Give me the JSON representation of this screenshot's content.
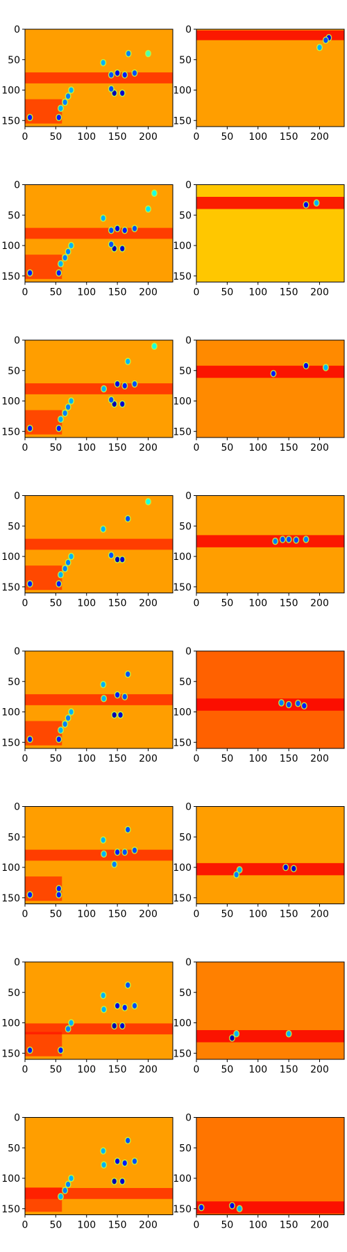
{
  "chart_data": {
    "type": "heatmap",
    "title": "",
    "colormap": "jet",
    "grid": false,
    "legend": "none",
    "layout": {
      "rows": 8,
      "cols": 2
    },
    "image_size": {
      "width": 240,
      "height": 160
    },
    "xlim": [
      0,
      240
    ],
    "ylim": [
      160,
      0
    ],
    "xticks": [
      0,
      50,
      100,
      150,
      200
    ],
    "yticks": [
      0,
      50,
      100,
      150
    ],
    "blob_groups": {
      "A": [
        [
          127,
          55
        ],
        [
          168,
          40
        ],
        [
          180,
          45
        ],
        [
          199,
          14
        ],
        [
          200,
          40
        ],
        [
          210,
          45
        ],
        [
          128,
          80
        ],
        [
          138,
          78
        ],
        [
          150,
          72
        ],
        [
          162,
          75
        ],
        [
          178,
          72
        ],
        [
          150,
          105
        ],
        [
          140,
          100
        ],
        [
          160,
          100
        ],
        [
          125,
          85
        ],
        [
          165,
          90
        ],
        [
          75,
          100
        ],
        [
          70,
          110
        ],
        [
          65,
          120
        ],
        [
          60,
          130
        ],
        [
          58,
          145
        ],
        [
          52,
          148
        ],
        [
          8,
          145
        ]
      ],
      "B": [
        [
          160,
          100
        ],
        [
          150,
          80
        ],
        [
          140,
          70
        ]
      ]
    },
    "panels": [
      {
        "row": 0,
        "col": 0,
        "kind": "left",
        "base": 0.72,
        "band_y": 80,
        "blobs": [
          [
            127,
            55,
            2,
            0.3
          ],
          [
            168,
            40,
            2,
            0.25
          ],
          [
            200,
            40,
            2,
            0.45
          ],
          [
            140,
            75,
            2,
            0.2
          ],
          [
            150,
            72,
            2,
            0.1
          ],
          [
            162,
            75,
            2,
            0.15
          ],
          [
            178,
            72,
            2,
            0.2
          ],
          [
            145,
            105,
            2,
            0.05
          ],
          [
            158,
            105,
            2,
            0.08
          ],
          [
            140,
            98,
            2,
            0.2
          ],
          [
            75,
            100,
            2,
            0.3
          ],
          [
            70,
            110,
            2,
            0.25
          ],
          [
            65,
            120,
            2,
            0.25
          ],
          [
            58,
            130,
            2,
            0.3
          ],
          [
            55,
            145,
            2,
            0.15
          ],
          [
            8,
            145,
            2,
            0.15
          ]
        ]
      },
      {
        "row": 0,
        "col": 1,
        "kind": "right",
        "base": 0.72,
        "band_y": 10,
        "band_half": 8,
        "blobs": [
          [
            215,
            14,
            2,
            0.1
          ],
          [
            210,
            18,
            2,
            0.2
          ],
          [
            200,
            30,
            2,
            0.3
          ]
        ]
      },
      {
        "row": 1,
        "col": 0,
        "kind": "left",
        "base": 0.72,
        "band_y": 80,
        "blobs": [
          [
            127,
            55,
            2,
            0.3
          ],
          [
            200,
            40,
            2,
            0.35
          ],
          [
            210,
            14,
            2,
            0.4
          ],
          [
            140,
            75,
            2,
            0.2
          ],
          [
            150,
            72,
            2,
            0.1
          ],
          [
            162,
            75,
            2,
            0.15
          ],
          [
            178,
            72,
            2,
            0.2
          ],
          [
            145,
            105,
            2,
            0.05
          ],
          [
            158,
            105,
            2,
            0.08
          ],
          [
            140,
            98,
            2,
            0.2
          ],
          [
            75,
            100,
            2,
            0.3
          ],
          [
            70,
            110,
            2,
            0.25
          ],
          [
            65,
            120,
            2,
            0.25
          ],
          [
            58,
            130,
            2,
            0.3
          ],
          [
            55,
            145,
            2,
            0.15
          ],
          [
            8,
            145,
            2,
            0.15
          ]
        ]
      },
      {
        "row": 1,
        "col": 1,
        "kind": "right",
        "base": 0.68,
        "band_y": 30,
        "band_half": 10,
        "blobs": [
          [
            178,
            33,
            2,
            0.1
          ],
          [
            195,
            30,
            2,
            0.3
          ]
        ]
      },
      {
        "row": 2,
        "col": 0,
        "kind": "left",
        "base": 0.72,
        "band_y": 80,
        "blobs": [
          [
            167,
            35,
            2,
            0.3
          ],
          [
            210,
            10,
            2,
            0.4
          ],
          [
            128,
            80,
            2,
            0.3
          ],
          [
            150,
            72,
            2,
            0.1
          ],
          [
            162,
            75,
            2,
            0.15
          ],
          [
            178,
            72,
            2,
            0.2
          ],
          [
            145,
            105,
            2,
            0.05
          ],
          [
            158,
            105,
            2,
            0.08
          ],
          [
            140,
            98,
            2,
            0.2
          ],
          [
            75,
            100,
            2,
            0.3
          ],
          [
            70,
            110,
            2,
            0.25
          ],
          [
            65,
            120,
            2,
            0.25
          ],
          [
            58,
            130,
            2,
            0.3
          ],
          [
            55,
            145,
            2,
            0.15
          ],
          [
            8,
            145,
            2,
            0.15
          ]
        ]
      },
      {
        "row": 2,
        "col": 1,
        "kind": "right",
        "base": 0.74,
        "band_y": 52,
        "band_half": 10,
        "blobs": [
          [
            125,
            55,
            2,
            0.15
          ],
          [
            178,
            42,
            2,
            0.1
          ],
          [
            210,
            45,
            2,
            0.3
          ]
        ]
      },
      {
        "row": 3,
        "col": 0,
        "kind": "left",
        "base": 0.72,
        "band_y": 80,
        "blobs": [
          [
            127,
            55,
            2,
            0.3
          ],
          [
            167,
            38,
            2,
            0.2
          ],
          [
            200,
            10,
            2,
            0.4
          ],
          [
            150,
            105,
            2,
            0.05
          ],
          [
            158,
            105,
            2,
            0.08
          ],
          [
            140,
            98,
            2,
            0.2
          ],
          [
            75,
            100,
            2,
            0.3
          ],
          [
            70,
            110,
            2,
            0.25
          ],
          [
            65,
            120,
            2,
            0.25
          ],
          [
            58,
            130,
            2,
            0.3
          ],
          [
            55,
            145,
            2,
            0.15
          ],
          [
            8,
            145,
            2,
            0.15
          ]
        ]
      },
      {
        "row": 3,
        "col": 1,
        "kind": "right",
        "base": 0.72,
        "band_y": 75,
        "band_half": 10,
        "blobs": [
          [
            128,
            75,
            2,
            0.25
          ],
          [
            140,
            72,
            2,
            0.2
          ],
          [
            150,
            72,
            2,
            0.2
          ],
          [
            162,
            73,
            2,
            0.2
          ],
          [
            178,
            72,
            2,
            0.25
          ]
        ]
      },
      {
        "row": 4,
        "col": 0,
        "kind": "left",
        "base": 0.72,
        "band_y": 80,
        "blobs": [
          [
            127,
            55,
            2,
            0.3
          ],
          [
            167,
            38,
            2,
            0.2
          ],
          [
            128,
            78,
            2,
            0.3
          ],
          [
            150,
            72,
            2,
            0.15
          ],
          [
            162,
            75,
            2,
            0.2
          ],
          [
            145,
            105,
            2,
            0.05
          ],
          [
            155,
            105,
            2,
            0.08
          ],
          [
            75,
            100,
            2,
            0.3
          ],
          [
            70,
            110,
            2,
            0.25
          ],
          [
            65,
            120,
            2,
            0.25
          ],
          [
            58,
            130,
            2,
            0.3
          ],
          [
            55,
            145,
            2,
            0.15
          ],
          [
            8,
            145,
            2,
            0.15
          ]
        ]
      },
      {
        "row": 4,
        "col": 1,
        "kind": "right",
        "base": 0.78,
        "band_y": 88,
        "band_half": 10,
        "blobs": [
          [
            138,
            85,
            2,
            0.25
          ],
          [
            150,
            88,
            2,
            0.2
          ],
          [
            165,
            86,
            2,
            0.2
          ],
          [
            175,
            90,
            2,
            0.15
          ]
        ]
      },
      {
        "row": 5,
        "col": 0,
        "kind": "left",
        "base": 0.72,
        "band_y": 80,
        "blobs": [
          [
            127,
            55,
            2,
            0.3
          ],
          [
            167,
            38,
            2,
            0.2
          ],
          [
            128,
            78,
            2,
            0.3
          ],
          [
            150,
            75,
            2,
            0.15
          ],
          [
            162,
            75,
            2,
            0.2
          ],
          [
            178,
            72,
            2,
            0.2
          ],
          [
            145,
            95,
            2,
            0.25
          ],
          [
            55,
            135,
            2,
            0.15
          ],
          [
            55,
            145,
            2,
            0.15
          ],
          [
            8,
            145,
            2,
            0.15
          ]
        ]
      },
      {
        "row": 5,
        "col": 1,
        "kind": "right",
        "base": 0.72,
        "band_y": 103,
        "band_half": 10,
        "blobs": [
          [
            70,
            104,
            2,
            0.3
          ],
          [
            65,
            112,
            2,
            0.25
          ],
          [
            145,
            100,
            2,
            0.1
          ],
          [
            158,
            102,
            2,
            0.08
          ]
        ]
      },
      {
        "row": 6,
        "col": 0,
        "kind": "left",
        "base": 0.72,
        "band_y": 110,
        "blobs": [
          [
            127,
            55,
            2,
            0.3
          ],
          [
            167,
            38,
            2,
            0.2
          ],
          [
            128,
            78,
            2,
            0.3
          ],
          [
            150,
            72,
            2,
            0.1
          ],
          [
            162,
            75,
            2,
            0.15
          ],
          [
            178,
            72,
            2,
            0.2
          ],
          [
            145,
            105,
            2,
            0.05
          ],
          [
            158,
            105,
            2,
            0.08
          ],
          [
            75,
            100,
            2,
            0.3
          ],
          [
            70,
            110,
            2,
            0.25
          ],
          [
            58,
            145,
            2,
            0.15
          ],
          [
            8,
            145,
            2,
            0.15
          ]
        ]
      },
      {
        "row": 6,
        "col": 1,
        "kind": "right",
        "base": 0.75,
        "band_y": 122,
        "band_half": 10,
        "blobs": [
          [
            58,
            125,
            2,
            0.05
          ],
          [
            65,
            118,
            2,
            0.3
          ],
          [
            150,
            118,
            2,
            0.3
          ]
        ]
      },
      {
        "row": 7,
        "col": 0,
        "kind": "left",
        "base": 0.72,
        "band_y": 125,
        "blobs": [
          [
            127,
            55,
            2,
            0.3
          ],
          [
            167,
            38,
            2,
            0.2
          ],
          [
            128,
            78,
            2,
            0.3
          ],
          [
            150,
            72,
            2,
            0.1
          ],
          [
            162,
            75,
            2,
            0.15
          ],
          [
            178,
            72,
            2,
            0.2
          ],
          [
            145,
            105,
            2,
            0.05
          ],
          [
            158,
            105,
            2,
            0.08
          ],
          [
            75,
            100,
            2,
            0.3
          ],
          [
            70,
            110,
            2,
            0.25
          ],
          [
            65,
            120,
            2,
            0.25
          ],
          [
            58,
            130,
            2,
            0.3
          ]
        ]
      },
      {
        "row": 7,
        "col": 1,
        "kind": "right",
        "base": 0.76,
        "band_y": 148,
        "band_half": 10,
        "blobs": [
          [
            8,
            148,
            2,
            0.15
          ],
          [
            58,
            145,
            2,
            0.1
          ],
          [
            70,
            150,
            2,
            0.3
          ]
        ]
      }
    ]
  }
}
